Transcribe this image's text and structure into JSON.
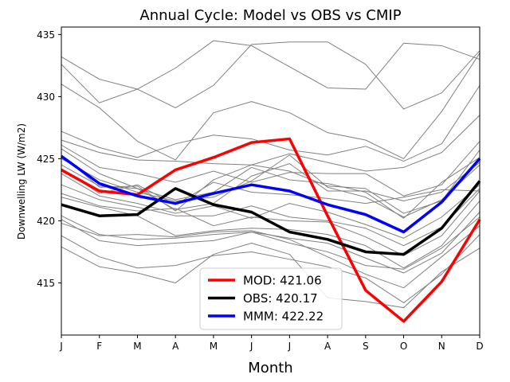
{
  "chart_data": {
    "type": "line",
    "title": "Annual Cycle: Model vs OBS vs CMIP",
    "xlabel": "Month",
    "ylabel": "Downwelling LW (W/m2)",
    "categories": [
      "J",
      "F",
      "M",
      "A",
      "M",
      "J",
      "J",
      "A",
      "S",
      "O",
      "N",
      "D"
    ],
    "ylim": [
      410.8,
      435.6
    ],
    "yticks": [
      415,
      420,
      425,
      430,
      435
    ],
    "legend_position": "lower-center",
    "series": [
      {
        "name": "MOD: 421.06",
        "role": "highlight",
        "color": "#ff0000",
        "values": [
          424.1,
          422.4,
          422.1,
          424.1,
          425.1,
          426.3,
          426.6,
          420.4,
          414.4,
          411.9,
          415.1,
          420.1
        ]
      },
      {
        "name": "OBS: 420.17",
        "role": "highlight",
        "color": "#000000",
        "values": [
          421.3,
          420.4,
          420.5,
          422.6,
          421.3,
          420.7,
          419.1,
          418.5,
          417.5,
          417.3,
          419.4,
          423.2
        ]
      },
      {
        "name": "MMM: 422.22",
        "role": "highlight",
        "color": "#0000ff",
        "values": [
          425.2,
          423.0,
          422.0,
          421.4,
          422.2,
          422.9,
          422.4,
          421.3,
          420.5,
          419.1,
          421.5,
          425.0
        ]
      }
    ],
    "cmip_models": [
      {
        "color": "#808080",
        "values": [
          433.2,
          431.4,
          430.6,
          432.3,
          434.5,
          434.1,
          432.4,
          430.7,
          430.6,
          434.3,
          434.1,
          433.0
        ]
      },
      {
        "color": "#808080",
        "values": [
          432.6,
          429.5,
          430.6,
          429.1,
          430.9,
          434.2,
          434.4,
          434.4,
          432.6,
          429.0,
          430.3,
          433.7
        ]
      },
      {
        "color": "#808080",
        "values": [
          431.0,
          429.1,
          426.4,
          424.9,
          428.7,
          429.6,
          428.7,
          427.1,
          426.5,
          425.0,
          428.8,
          433.5
        ]
      },
      {
        "color": "#808080",
        "values": [
          427.2,
          425.9,
          425.1,
          426.2,
          426.9,
          426.6,
          425.7,
          425.3,
          426.0,
          424.8,
          426.2,
          430.9
        ]
      },
      {
        "color": "#808080",
        "values": [
          426.5,
          425.5,
          424.9,
          424.8,
          424.6,
          424.5,
          425.4,
          424.7,
          424.0,
          424.3,
          425.5,
          428.5
        ]
      },
      {
        "color": "#808080",
        "values": [
          426.1,
          424.3,
          423.8,
          423.1,
          424.0,
          423.1,
          423.9,
          423.8,
          423.8,
          422.0,
          422.9,
          426.4
        ]
      },
      {
        "color": "#808080",
        "values": [
          425.8,
          423.8,
          422.6,
          421.7,
          422.3,
          424.3,
          423.3,
          423.0,
          422.3,
          420.2,
          423.1,
          425.1
        ]
      },
      {
        "color": "#808080",
        "values": [
          425.3,
          422.7,
          422.8,
          420.8,
          423.3,
          424.5,
          424.0,
          422.8,
          422.6,
          420.6,
          421.6,
          425.7
        ]
      },
      {
        "color": "#808080",
        "values": [
          425.0,
          423.3,
          422.3,
          421.6,
          421.9,
          423.2,
          425.3,
          422.7,
          421.9,
          420.3,
          421.7,
          424.5
        ]
      },
      {
        "color": "#808080",
        "values": [
          424.5,
          422.8,
          422.6,
          420.9,
          421.4,
          423.6,
          424.6,
          422.4,
          422.4,
          421.6,
          422.3,
          424.7
        ]
      },
      {
        "color": "#808080",
        "values": [
          424.2,
          422.2,
          422.9,
          421.3,
          423.1,
          422.3,
          422.1,
          421.8,
          421.4,
          421.9,
          422.5,
          422.4
        ]
      },
      {
        "color": "#808080",
        "values": [
          423.8,
          422.0,
          421.4,
          420.6,
          421.2,
          420.2,
          421.4,
          420.7,
          419.7,
          418.6,
          420.3,
          422.9
        ]
      },
      {
        "color": "#808080",
        "values": [
          422.9,
          421.7,
          421.1,
          420.4,
          420.4,
          421.2,
          420.3,
          420.0,
          419.4,
          418.0,
          419.5,
          422.6
        ]
      },
      {
        "color": "#808080",
        "values": [
          422.2,
          421.2,
          420.8,
          421.0,
          419.6,
          420.3,
          420.0,
          419.9,
          418.7,
          417.2,
          418.8,
          422.4
        ]
      },
      {
        "color": "#808080",
        "values": [
          421.9,
          421.1,
          420.4,
          418.8,
          419.2,
          419.4,
          419.3,
          418.9,
          418.0,
          416.2,
          418.0,
          421.6
        ]
      },
      {
        "color": "#808080",
        "values": [
          420.4,
          418.9,
          418.5,
          418.6,
          418.9,
          419.1,
          418.6,
          418.2,
          417.0,
          415.8,
          417.4,
          420.7
        ]
      },
      {
        "color": "#808080",
        "values": [
          420.1,
          418.4,
          418.0,
          418.2,
          418.4,
          419.1,
          418.2,
          417.5,
          416.4,
          416.1,
          417.8,
          420.3
        ]
      },
      {
        "color": "#808080",
        "values": [
          419.8,
          418.8,
          418.9,
          418.7,
          419.1,
          419.2,
          418.5,
          417.1,
          415.7,
          414.6,
          417.1,
          419.6
        ]
      },
      {
        "color": "#808080",
        "values": [
          418.8,
          417.1,
          416.2,
          416.4,
          417.2,
          417.5,
          416.9,
          416.3,
          415.4,
          413.4,
          415.7,
          418.9
        ]
      },
      {
        "color": "#808080",
        "values": [
          417.9,
          416.3,
          415.8,
          415.0,
          417.3,
          418.2,
          417.3,
          413.8,
          413.5,
          413.0,
          415.9,
          417.8
        ]
      }
    ]
  }
}
